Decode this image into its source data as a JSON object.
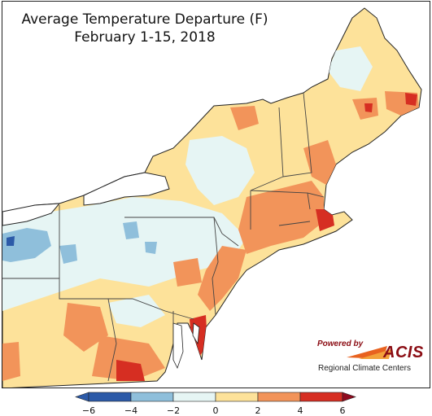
{
  "title": {
    "line1": "Average Temperature Departure (F)",
    "line2": "February 1-15, 2018"
  },
  "legend": {
    "ticks": [
      "−6",
      "−4",
      "−2",
      "0",
      "2",
      "4",
      "6"
    ],
    "colors": [
      "#2c5aa8",
      "#8fbfdb",
      "#e6f5f4",
      "#fde29a",
      "#f2945a",
      "#d62e22",
      "#8e0b1e"
    ]
  },
  "logo": {
    "powered_by": "Powered by",
    "acis": "ACIS",
    "regional": "Regional Climate Centers"
  },
  "palette": {
    "water": "#ffffff",
    "land_default": "#fde29a",
    "outside": "#ffffff",
    "border": "#333333"
  }
}
